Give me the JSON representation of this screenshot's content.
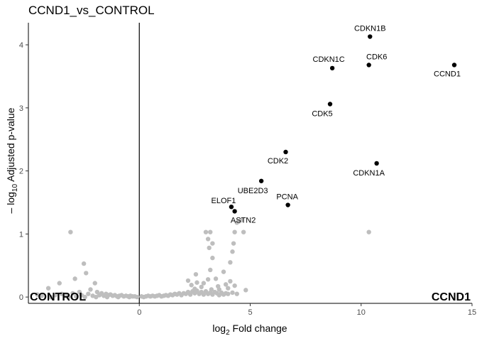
{
  "chart_data": {
    "type": "scatter",
    "title": "CCND1_vs_CONTROL",
    "xlabel_base": "log",
    "xlabel_sub": "2",
    "xlabel_rest": " Fold change",
    "ylabel_base": "– log",
    "ylabel_sub": "10",
    "ylabel_rest": " Adjusted p-value",
    "xlim": [
      -5,
      15
    ],
    "ylim": [
      -0.1,
      4.35
    ],
    "x_ticks": [
      0,
      5,
      10,
      15
    ],
    "y_ticks": [
      0,
      1,
      2,
      3,
      4
    ],
    "vline_x": 0,
    "left_group": "CONTROL",
    "right_group": "CCND1",
    "colors": {
      "significant": "#000000",
      "nonsignificant": "#bebebe"
    },
    "labeled_points": [
      {
        "gene": "CDKN1B",
        "x": 10.4,
        "y": 4.13
      },
      {
        "gene": "CDKN1C",
        "x": 8.7,
        "y": 3.63
      },
      {
        "gene": "CDK6",
        "x": 10.35,
        "y": 3.68
      },
      {
        "gene": "CCND1",
        "x": 14.2,
        "y": 3.68
      },
      {
        "gene": "CDK5",
        "x": 8.6,
        "y": 3.06
      },
      {
        "gene": "CDK2",
        "x": 6.6,
        "y": 2.3
      },
      {
        "gene": "CDKN1A",
        "x": 10.7,
        "y": 2.12
      },
      {
        "gene": "UBE2D3",
        "x": 5.5,
        "y": 1.84
      },
      {
        "gene": "ELOF1",
        "x": 4.15,
        "y": 1.43
      },
      {
        "gene": "PCNA",
        "x": 6.7,
        "y": 1.46
      },
      {
        "gene": "ASTN2",
        "x": 4.3,
        "y": 1.36
      }
    ],
    "background_points": [
      [
        -3.1,
        1.03
      ],
      [
        -2.5,
        0.53
      ],
      [
        -2.4,
        0.38
      ],
      [
        -2.9,
        0.29
      ],
      [
        -3.6,
        0.22
      ],
      [
        -4.1,
        0.14
      ],
      [
        -2.0,
        0.22
      ],
      [
        -2.2,
        0.12
      ],
      [
        -2.7,
        0.08
      ],
      [
        -4.6,
        0.04
      ],
      [
        -4.4,
        0.02
      ],
      [
        -3.8,
        0.03
      ],
      [
        -3.5,
        0.05
      ],
      [
        -3.3,
        0.02
      ],
      [
        -3.0,
        0.06
      ],
      [
        -2.85,
        0.01
      ],
      [
        -2.6,
        0.03
      ],
      [
        -2.3,
        0.05
      ],
      [
        -2.1,
        0.02
      ],
      [
        -1.9,
        0.08
      ],
      [
        -1.8,
        0.03
      ],
      [
        -1.7,
        0.06
      ],
      [
        -1.6,
        0.02
      ],
      [
        -1.5,
        0.05
      ],
      [
        -1.4,
        0.03
      ],
      [
        -1.3,
        0.04
      ],
      [
        -1.2,
        0.02
      ],
      [
        -1.1,
        0.03
      ],
      [
        -1.0,
        0.01
      ],
      [
        -0.9,
        0.02
      ],
      [
        -0.8,
        0.03
      ],
      [
        -0.7,
        0.01
      ],
      [
        -0.6,
        0.02
      ],
      [
        -0.5,
        0.01
      ],
      [
        -0.4,
        0.02
      ],
      [
        -0.3,
        0.01
      ],
      [
        -0.2,
        0.01
      ],
      [
        -0.1,
        0.0
      ],
      [
        -2.45,
        0.0
      ],
      [
        -1.95,
        0.0
      ],
      [
        -1.45,
        0.0
      ],
      [
        -0.95,
        0.0
      ],
      [
        -0.45,
        0.0
      ],
      [
        -3.2,
        0.0
      ],
      [
        -4.0,
        0.0
      ],
      [
        0.1,
        0.01
      ],
      [
        0.2,
        0.0
      ],
      [
        0.3,
        0.01
      ],
      [
        0.4,
        0.02
      ],
      [
        0.5,
        0.01
      ],
      [
        0.6,
        0.02
      ],
      [
        0.7,
        0.01
      ],
      [
        0.8,
        0.02
      ],
      [
        0.9,
        0.03
      ],
      [
        1.0,
        0.01
      ],
      [
        1.1,
        0.02
      ],
      [
        1.2,
        0.03
      ],
      [
        1.3,
        0.02
      ],
      [
        1.4,
        0.04
      ],
      [
        1.5,
        0.03
      ],
      [
        1.6,
        0.05
      ],
      [
        1.7,
        0.04
      ],
      [
        1.8,
        0.06
      ],
      [
        1.9,
        0.03
      ],
      [
        2.0,
        0.06
      ],
      [
        2.1,
        0.05
      ],
      [
        2.2,
        0.08
      ],
      [
        2.3,
        0.04
      ],
      [
        2.4,
        0.09
      ],
      [
        2.5,
        0.06
      ],
      [
        2.6,
        0.1
      ],
      [
        2.7,
        0.05
      ],
      [
        2.8,
        0.08
      ],
      [
        2.9,
        0.04
      ],
      [
        3.0,
        0.09
      ],
      [
        3.1,
        0.05
      ],
      [
        3.2,
        0.07
      ],
      [
        3.3,
        0.04
      ],
      [
        3.4,
        0.08
      ],
      [
        3.5,
        0.06
      ],
      [
        3.6,
        0.03
      ],
      [
        3.7,
        0.07
      ],
      [
        3.8,
        0.04
      ],
      [
        3.9,
        0.06
      ],
      [
        4.0,
        0.05
      ],
      [
        4.2,
        0.07
      ],
      [
        4.4,
        0.05
      ],
      [
        4.8,
        0.11
      ],
      [
        2.2,
        0.26
      ],
      [
        2.35,
        0.19
      ],
      [
        2.5,
        0.13
      ],
      [
        2.55,
        0.36
      ],
      [
        2.6,
        0.23
      ],
      [
        2.8,
        0.16
      ],
      [
        2.9,
        0.22
      ],
      [
        3.1,
        0.28
      ],
      [
        3.2,
        0.43
      ],
      [
        3.25,
        0.12
      ],
      [
        3.3,
        0.62
      ],
      [
        3.45,
        0.29
      ],
      [
        3.55,
        0.17
      ],
      [
        3.6,
        0.12
      ],
      [
        3.0,
        1.03
      ],
      [
        3.1,
        0.92
      ],
      [
        3.15,
        0.78
      ],
      [
        3.2,
        1.03
      ],
      [
        3.3,
        0.85
      ],
      [
        3.8,
        0.4
      ],
      [
        3.9,
        0.2
      ],
      [
        4.0,
        0.14
      ],
      [
        4.1,
        0.55
      ],
      [
        4.2,
        0.72
      ],
      [
        4.25,
        0.85
      ],
      [
        4.3,
        1.03
      ],
      [
        4.4,
        1.18
      ],
      [
        4.5,
        1.2
      ],
      [
        4.6,
        1.22
      ],
      [
        4.7,
        1.03
      ],
      [
        4.1,
        0.25
      ],
      [
        4.3,
        0.18
      ],
      [
        10.35,
        1.03
      ]
    ]
  }
}
